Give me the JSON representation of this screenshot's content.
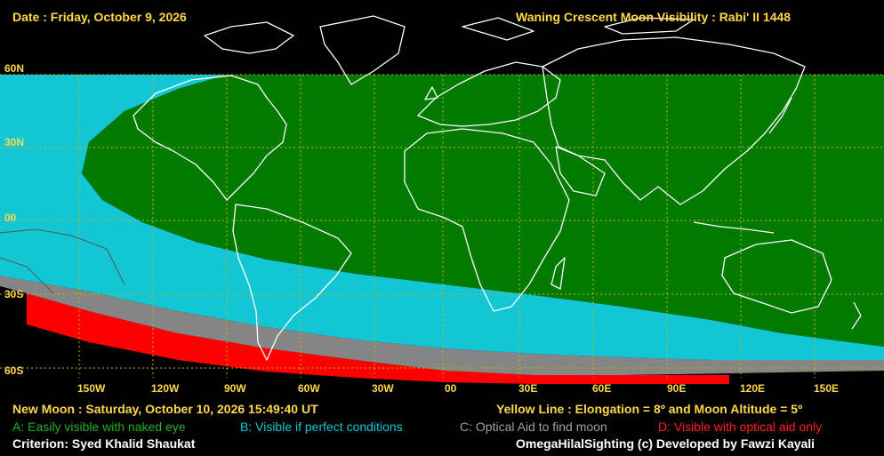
{
  "header": {
    "date": "Date : Friday, October 9, 2026",
    "title": "Waning Crescent Moon Visibility : Rabi' II 1448"
  },
  "latitude_labels": [
    "60N",
    "30N",
    "00",
    "30S",
    "60S"
  ],
  "longitude_labels": [
    "150W",
    "120W",
    "90W",
    "60W",
    "30W",
    "00",
    "30E",
    "60E",
    "90E",
    "120E",
    "150E"
  ],
  "footer": {
    "new_moon": "New Moon : Saturday, October 10, 2026  15:49:40  UT",
    "yellow_line": "Yellow Line : Elongation = 8º  and Moon Altitude = 5º",
    "legend_a": "A: Easily visible with naked eye",
    "legend_b": "B: Visible if perfect conditions",
    "legend_c": "C: Optical Aid to find moon",
    "legend_d": "D: Visible with optical aid only",
    "criterion": "Criterion: Syed Khalid Shaukat",
    "credit": "OmegaHilalSighting  (c)  Developed by Fawzi Kayali"
  },
  "colors": {
    "zone_a": "#007a00",
    "zone_b": "#12c6d6",
    "zone_c": "#858585",
    "zone_d": "#ff0000",
    "text_yellow": "#ffd84a",
    "grid_yellow": "#c8b400",
    "coast": "#ffffff"
  }
}
